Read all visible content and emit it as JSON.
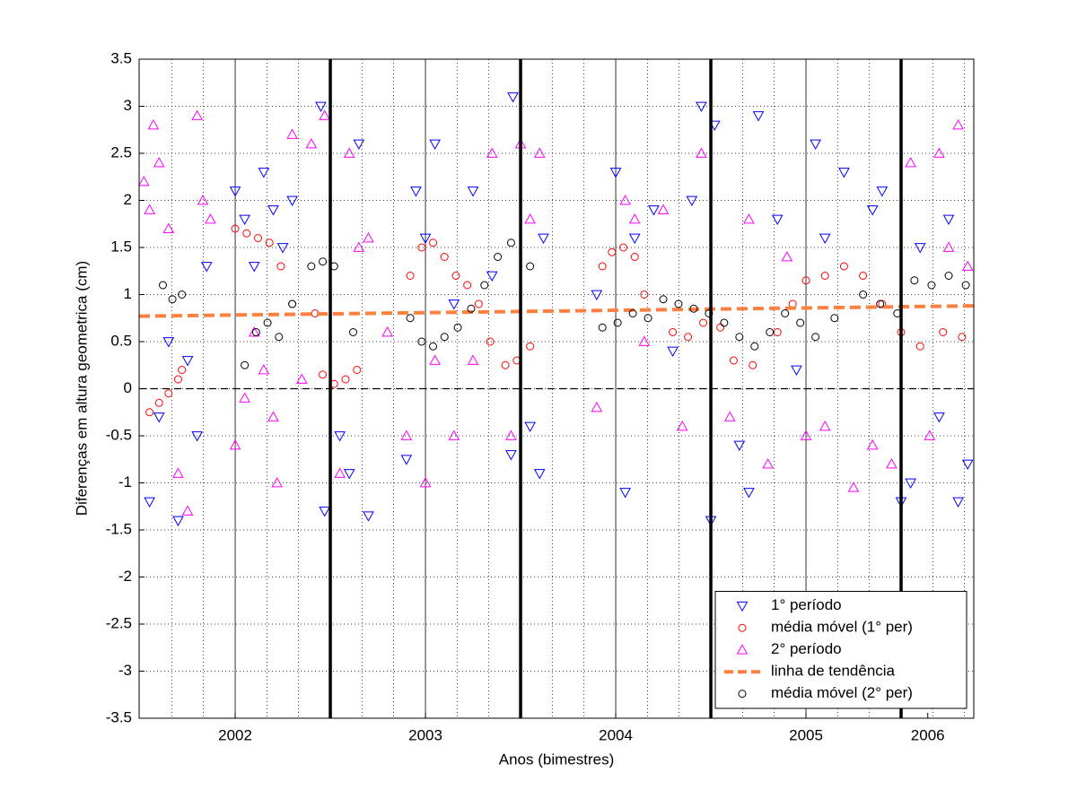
{
  "chart_data": {
    "type": "scatter",
    "xlabel": "Anos (bimestres)",
    "ylabel": "Diferenças em altura geometrica (cm)",
    "xlim": [
      2001.495,
      2005.882
    ],
    "ylim": [
      -3.5,
      3.5
    ],
    "xticks": [
      2002,
      2003,
      2004,
      2005,
      {
        "value": 2005.64,
        "label": "2006"
      }
    ],
    "yticks": [
      -3.5,
      -3,
      -2.5,
      -2,
      -1.5,
      -1,
      -0.5,
      0,
      0.5,
      1,
      1.5,
      2,
      2.5,
      3,
      3.5
    ],
    "xminorticks": [
      2001.667,
      2001.833,
      2002.167,
      2002.333,
      2002.667,
      2002.833,
      2003.167,
      2003.333,
      2003.667,
      2003.833,
      2004.167,
      2004.333,
      2004.667,
      2004.833,
      2005.167,
      2005.333,
      2005.667,
      2005.833
    ],
    "year_lines": [
      2002,
      2003,
      2004,
      2005
    ],
    "period_lines": [
      2002.5,
      2003.5,
      2004.5,
      2005.5
    ],
    "reference_lines": [
      0
    ],
    "grid": true,
    "legend": "lower right",
    "series": [
      {
        "name": "1° período",
        "color": "#0000ff",
        "marker": "v",
        "x": [
          2001.55,
          2001.6,
          2001.65,
          2001.7,
          2001.75,
          2001.8,
          2001.85,
          2002.0,
          2002.05,
          2002.1,
          2002.15,
          2002.2,
          2002.25,
          2002.3,
          2002.45,
          2002.47,
          2002.55,
          2002.6,
          2002.65,
          2002.7,
          2002.9,
          2002.95,
          2003.0,
          2003.05,
          2003.15,
          2003.25,
          2003.35,
          2003.45,
          2003.46,
          2003.55,
          2003.6,
          2003.62,
          2003.9,
          2004.0,
          2004.05,
          2004.1,
          2004.2,
          2004.3,
          2004.4,
          2004.45,
          2004.5,
          2004.52,
          2004.65,
          2004.7,
          2004.75,
          2004.85,
          2004.95,
          2005.05,
          2005.1,
          2005.2,
          2005.35,
          2005.4,
          2005.5,
          2005.55,
          2005.6,
          2005.7,
          2005.75,
          2005.8,
          2005.85
        ],
        "values": [
          -1.2,
          -0.3,
          0.5,
          -1.4,
          0.3,
          -0.5,
          1.3,
          2.1,
          1.8,
          1.3,
          2.3,
          1.9,
          1.5,
          2.0,
          3.0,
          -1.3,
          -0.5,
          -0.9,
          2.6,
          -1.35,
          -0.75,
          2.1,
          1.6,
          2.6,
          0.9,
          2.1,
          1.2,
          -0.7,
          3.1,
          -0.4,
          -0.9,
          1.6,
          1.0,
          2.3,
          -1.1,
          1.6,
          1.9,
          0.4,
          2.0,
          3.0,
          -1.4,
          2.8,
          -0.6,
          -1.1,
          2.9,
          1.8,
          0.2,
          2.6,
          1.6,
          2.3,
          1.9,
          2.1,
          -1.2,
          -1.0,
          1.5,
          -0.3,
          1.8,
          -1.2,
          -0.8
        ]
      },
      {
        "name": "média móvel (1° per)",
        "color": "#ff0000",
        "marker": "o",
        "x": [
          2001.55,
          2001.6,
          2001.65,
          2001.7,
          2001.72,
          2002.0,
          2002.06,
          2002.12,
          2002.18,
          2002.24,
          2002.3,
          2002.42,
          2002.46,
          2002.52,
          2002.58,
          2002.64,
          2002.92,
          2002.98,
          2003.04,
          2003.1,
          2003.16,
          2003.22,
          2003.28,
          2003.34,
          2003.42,
          2003.48,
          2003.55,
          2003.93,
          2003.98,
          2004.04,
          2004.1,
          2004.15,
          2004.3,
          2004.38,
          2004.46,
          2004.55,
          2004.62,
          2004.72,
          2004.85,
          2004.93,
          2005.0,
          2005.1,
          2005.2,
          2005.3,
          2005.4,
          2005.5,
          2005.6,
          2005.72,
          2005.82
        ],
        "values": [
          -0.25,
          -0.15,
          -0.05,
          0.1,
          0.2,
          1.7,
          1.65,
          1.6,
          1.55,
          1.3,
          0.9,
          0.8,
          0.15,
          0.05,
          0.1,
          0.2,
          1.2,
          1.5,
          1.55,
          1.4,
          1.2,
          1.1,
          0.9,
          0.5,
          0.25,
          0.3,
          0.45,
          1.3,
          1.45,
          1.5,
          1.4,
          1.0,
          0.6,
          0.55,
          0.7,
          0.65,
          0.3,
          0.25,
          0.6,
          0.9,
          1.15,
          1.2,
          1.3,
          1.2,
          0.9,
          0.6,
          0.45,
          0.6,
          0.55
        ]
      },
      {
        "name": "2° período",
        "color": "#ff00ff",
        "marker": "^",
        "x": [
          2001.52,
          2001.55,
          2001.57,
          2001.6,
          2001.65,
          2001.7,
          2001.75,
          2001.8,
          2001.83,
          2001.87,
          2002.0,
          2002.05,
          2002.1,
          2002.15,
          2002.2,
          2002.22,
          2002.3,
          2002.35,
          2002.4,
          2002.47,
          2002.55,
          2002.6,
          2002.65,
          2002.7,
          2002.8,
          2002.9,
          2003.0,
          2003.05,
          2003.15,
          2003.25,
          2003.35,
          2003.45,
          2003.5,
          2003.55,
          2003.6,
          2003.9,
          2004.05,
          2004.1,
          2004.15,
          2004.25,
          2004.35,
          2004.45,
          2004.6,
          2004.7,
          2004.8,
          2004.9,
          2005.0,
          2005.1,
          2005.25,
          2005.35,
          2005.45,
          2005.55,
          2005.65,
          2005.7,
          2005.75,
          2005.8,
          2005.85
        ],
        "values": [
          2.2,
          1.9,
          2.8,
          2.4,
          1.7,
          -0.9,
          -1.3,
          2.9,
          2.0,
          1.8,
          -0.6,
          -0.1,
          0.6,
          0.2,
          -0.3,
          -1.0,
          2.7,
          0.1,
          2.6,
          2.9,
          -0.9,
          2.5,
          1.5,
          1.6,
          0.6,
          -0.5,
          -1.0,
          0.3,
          -0.5,
          0.3,
          2.5,
          -0.5,
          2.6,
          1.8,
          2.5,
          -0.2,
          2.0,
          1.8,
          0.5,
          1.9,
          -0.4,
          2.5,
          -0.3,
          1.8,
          -0.8,
          1.4,
          -0.5,
          -0.4,
          -1.05,
          -0.6,
          -0.8,
          2.4,
          -0.5,
          2.5,
          1.5,
          2.8,
          1.3
        ]
      },
      {
        "name": "linha de tendência",
        "color": "#ff7f3f",
        "marker": "line",
        "x": [
          2001.495,
          2005.882
        ],
        "values": [
          0.77,
          0.88
        ]
      },
      {
        "name": "média móvel (2° per)",
        "color": "#000000",
        "marker": "o",
        "x": [
          2001.62,
          2001.67,
          2001.72,
          2002.05,
          2002.11,
          2002.17,
          2002.23,
          2002.3,
          2002.4,
          2002.46,
          2002.52,
          2002.62,
          2002.92,
          2002.98,
          2003.04,
          2003.1,
          2003.17,
          2003.24,
          2003.31,
          2003.38,
          2003.45,
          2003.55,
          2003.93,
          2004.01,
          2004.09,
          2004.17,
          2004.25,
          2004.33,
          2004.41,
          2004.49,
          2004.57,
          2004.65,
          2004.73,
          2004.81,
          2004.89,
          2004.97,
          2005.05,
          2005.15,
          2005.3,
          2005.39,
          2005.48,
          2005.57,
          2005.66,
          2005.75,
          2005.84
        ],
        "values": [
          1.1,
          0.95,
          1.0,
          0.25,
          0.6,
          0.7,
          0.55,
          0.9,
          1.3,
          1.35,
          1.3,
          0.6,
          0.75,
          0.5,
          0.45,
          0.55,
          0.65,
          0.85,
          1.1,
          1.4,
          1.55,
          1.3,
          0.65,
          0.7,
          0.8,
          0.75,
          0.95,
          0.9,
          0.85,
          0.8,
          0.7,
          0.55,
          0.45,
          0.6,
          0.8,
          0.7,
          0.55,
          0.75,
          1.0,
          0.9,
          0.8,
          1.15,
          1.1,
          1.2,
          1.1
        ]
      }
    ]
  }
}
